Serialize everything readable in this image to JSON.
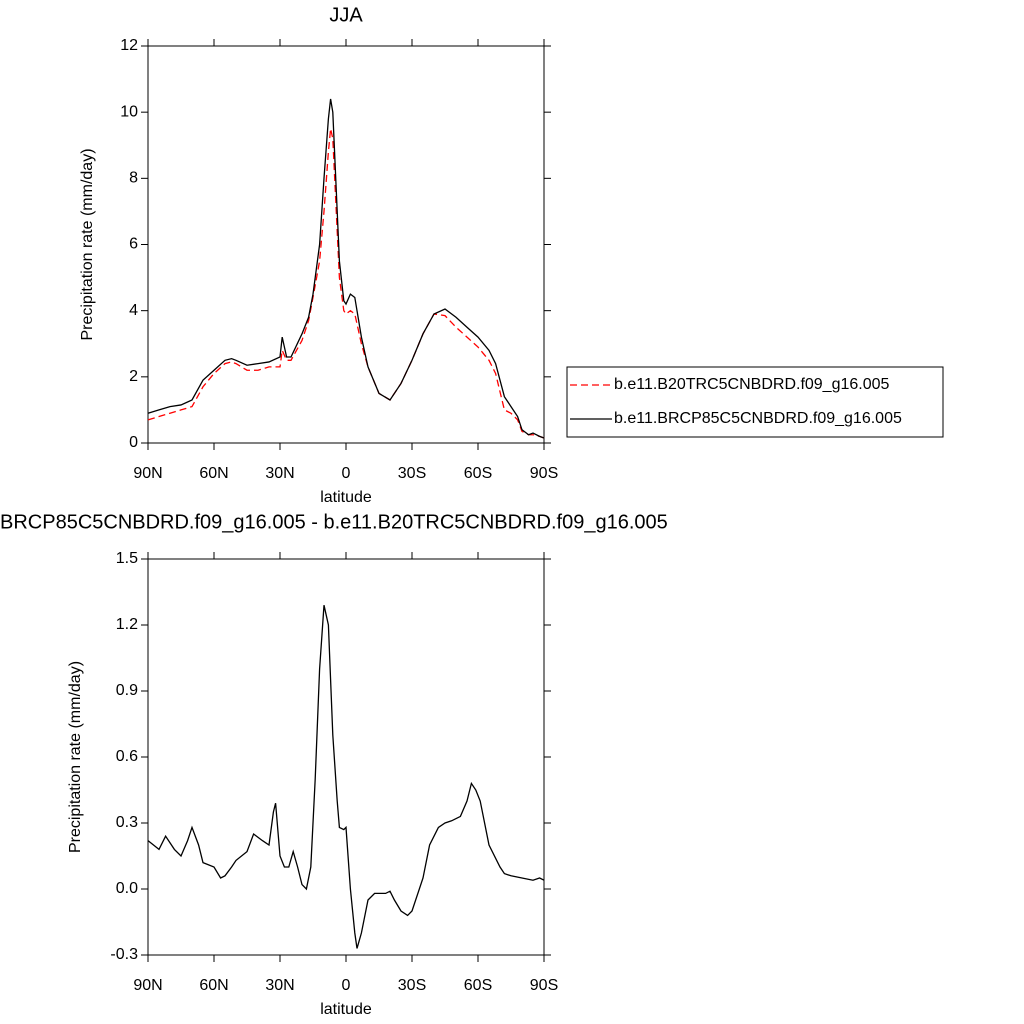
{
  "chart_data": [
    {
      "type": "line",
      "title": "JJA",
      "x_label": "latitude",
      "y_label": "Precipitation rate (mm/day)",
      "x": [
        90,
        85,
        80,
        75,
        70,
        65,
        60,
        55,
        52,
        50,
        45,
        40,
        35,
        30,
        29,
        27,
        25,
        20,
        17,
        15,
        12,
        10,
        8,
        7,
        6,
        5,
        3,
        1,
        0,
        -2,
        -4,
        -7,
        -10,
        -15,
        -20,
        -25,
        -30,
        -35,
        -40,
        -45,
        -50,
        -55,
        -60,
        -65,
        -68,
        -72,
        -75,
        -78,
        -80,
        -83,
        -85,
        -88,
        -90
      ],
      "series": [
        {
          "name": "b.e11.B20TRC5CNBDRD.f09_g16.005",
          "color": "#ff0000",
          "dashed": true,
          "values": [
            0.7,
            0.8,
            0.9,
            1.0,
            1.1,
            1.7,
            2.1,
            2.4,
            2.45,
            2.4,
            2.2,
            2.2,
            2.3,
            2.3,
            2.8,
            2.5,
            2.5,
            3.1,
            3.7,
            4.4,
            5.5,
            7.0,
            8.8,
            9.5,
            9.2,
            7.8,
            5.0,
            4.0,
            3.9,
            4.0,
            3.9,
            3.0,
            2.3,
            1.5,
            1.3,
            1.8,
            2.5,
            3.3,
            3.9,
            3.85,
            3.5,
            3.2,
            2.9,
            2.5,
            2.1,
            1.0,
            0.9,
            0.7,
            0.35,
            0.25,
            0.25,
            0.2,
            0.15
          ]
        },
        {
          "name": "b.e11.BRCP85C5CNBDRD.f09_g16.005",
          "color": "#000000",
          "dashed": false,
          "values": [
            0.9,
            1.0,
            1.1,
            1.15,
            1.3,
            1.9,
            2.2,
            2.5,
            2.55,
            2.5,
            2.35,
            2.4,
            2.45,
            2.6,
            3.2,
            2.6,
            2.6,
            3.3,
            3.8,
            4.5,
            6.0,
            8.0,
            9.8,
            10.4,
            10.0,
            8.5,
            5.5,
            4.3,
            4.2,
            4.5,
            4.4,
            3.2,
            2.3,
            1.5,
            1.3,
            1.8,
            2.5,
            3.3,
            3.9,
            4.05,
            3.8,
            3.5,
            3.2,
            2.8,
            2.4,
            1.4,
            1.1,
            0.8,
            0.4,
            0.25,
            0.3,
            0.2,
            0.15
          ]
        }
      ],
      "xlim": [
        90,
        -90
      ],
      "xticks": [
        {
          "value": 90,
          "label": "90N"
        },
        {
          "value": 60,
          "label": "60N"
        },
        {
          "value": 30,
          "label": "30N"
        },
        0,
        {
          "value": -30,
          "label": "30S"
        },
        {
          "value": -60,
          "label": "60S"
        },
        {
          "value": -90,
          "label": "90S"
        }
      ],
      "ylim": [
        0,
        12
      ],
      "yticks": [
        0,
        2,
        4,
        6,
        8,
        10,
        12
      ],
      "legend": "right"
    },
    {
      "type": "line",
      "title": "BRCP85C5CNBDRD.f09_g16.005 - b.e11.B20TRC5CNBDRD.f09_g16.005",
      "x_label": "latitude",
      "y_label": "Precipitation rate (mm/day)",
      "x": [
        90,
        85,
        82,
        78,
        75,
        72,
        70,
        67,
        65,
        60,
        57,
        55,
        52,
        50,
        45,
        42,
        38,
        35,
        33,
        32,
        30,
        28,
        26,
        24,
        22,
        20,
        18,
        16,
        14,
        12,
        10,
        8,
        6,
        4,
        3,
        1,
        0,
        -2,
        -4,
        -5,
        -7,
        -10,
        -13,
        -15,
        -18,
        -20,
        -22,
        -25,
        -28,
        -30,
        -35,
        -38,
        -42,
        -45,
        -48,
        -52,
        -55,
        -57,
        -59,
        -61,
        -65,
        -70,
        -72,
        -75,
        -80,
        -85,
        -88,
        -90
      ],
      "series": [
        {
          "color": "#000000",
          "dashed": false,
          "values": [
            0.22,
            0.18,
            0.24,
            0.18,
            0.15,
            0.22,
            0.28,
            0.2,
            0.12,
            0.1,
            0.05,
            0.06,
            0.1,
            0.13,
            0.17,
            0.25,
            0.22,
            0.2,
            0.35,
            0.39,
            0.15,
            0.1,
            0.1,
            0.17,
            0.1,
            0.02,
            0.0,
            0.1,
            0.5,
            1.0,
            1.29,
            1.2,
            0.7,
            0.4,
            0.28,
            0.27,
            0.28,
            0.0,
            -0.2,
            -0.27,
            -0.2,
            -0.05,
            -0.02,
            -0.02,
            -0.02,
            -0.01,
            -0.05,
            -0.1,
            -0.12,
            -0.1,
            0.05,
            0.2,
            0.28,
            0.3,
            0.31,
            0.33,
            0.4,
            0.48,
            0.45,
            0.4,
            0.2,
            0.1,
            0.07,
            0.06,
            0.05,
            0.04,
            0.05,
            0.04
          ]
        }
      ],
      "xlim": [
        90,
        -90
      ],
      "xticks": [
        {
          "value": 90,
          "label": "90N"
        },
        {
          "value": 60,
          "label": "60N"
        },
        {
          "value": 30,
          "label": "30N"
        },
        0,
        {
          "value": -30,
          "label": "30S"
        },
        {
          "value": -60,
          "label": "60S"
        },
        {
          "value": -90,
          "label": "90S"
        }
      ],
      "ylim": [
        -0.3,
        1.5
      ],
      "yticks": [
        -0.3,
        {
          "value": 0,
          "label": "0.0"
        },
        0.3,
        0.6,
        0.9,
        1.2,
        1.5
      ]
    }
  ]
}
